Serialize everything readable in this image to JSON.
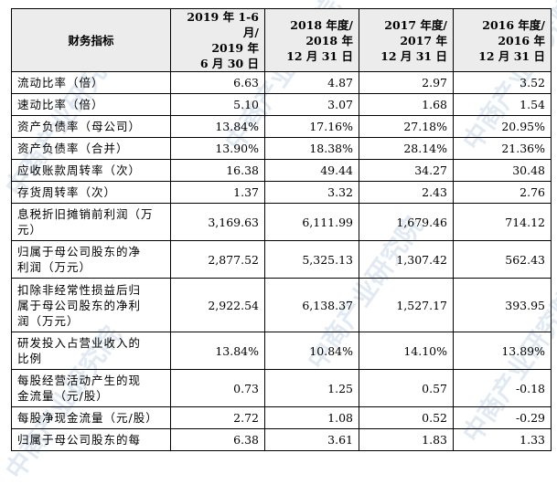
{
  "header": {
    "label": "财务指标",
    "cols": [
      [
        "2019 年 1-6 月/",
        "2019 年",
        "6 月 30 日"
      ],
      [
        "2018 年度/",
        "2018 年",
        "12 月 31 日"
      ],
      [
        "2017 年度/",
        "2017 年",
        "12 月 31 日"
      ],
      [
        "2016 年度/",
        "2016 年",
        "12 月 31 日"
      ]
    ]
  },
  "rows": [
    {
      "label": [
        "流动比率（倍）"
      ],
      "values": [
        "6.63",
        "4.87",
        "2.97",
        "3.52"
      ]
    },
    {
      "label": [
        "速动比率（倍）"
      ],
      "values": [
        "5.10",
        "3.07",
        "1.68",
        "1.54"
      ]
    },
    {
      "label": [
        "资产负债率（母公司）"
      ],
      "values": [
        "13.84%",
        "17.16%",
        "27.18%",
        "20.95%"
      ]
    },
    {
      "label": [
        "资产负债率（合并）"
      ],
      "values": [
        "13.90%",
        "18.38%",
        "28.14%",
        "21.36%"
      ]
    },
    {
      "label": [
        "应收账款周转率（次）"
      ],
      "values": [
        "16.38",
        "49.44",
        "34.27",
        "30.48"
      ]
    },
    {
      "label": [
        "存货周转率（次）"
      ],
      "values": [
        "1.37",
        "3.32",
        "2.43",
        "2.76"
      ]
    },
    {
      "label": [
        "息税折旧摊销前利润（万",
        "元）"
      ],
      "values": [
        "3,169.63",
        "6,111.99",
        "1,679.46",
        "714.12"
      ]
    },
    {
      "label": [
        "归属于母公司股东的净",
        "利润（万元）"
      ],
      "values": [
        "2,877.52",
        "5,325.13",
        "1,307.42",
        "562.43"
      ]
    },
    {
      "label": [
        "扣除非经常性损益后归",
        "属于母公司股东的净利",
        "润（万元）"
      ],
      "values": [
        "2,922.54",
        "6,138.37",
        "1,527.17",
        "393.95"
      ]
    },
    {
      "label": [
        "研发投入占营业收入的",
        "比例"
      ],
      "values": [
        "13.84%",
        "10.84%",
        "14.10%",
        "13.89%"
      ]
    },
    {
      "label": [
        "每股经营活动产生的现",
        "金流量（元/股）"
      ],
      "values": [
        "0.73",
        "1.25",
        "0.57",
        "-0.18"
      ]
    },
    {
      "label": [
        "每股净现金流量（元/股）"
      ],
      "values": [
        "2.72",
        "1.08",
        "0.52",
        "-0.29"
      ]
    },
    {
      "label": [
        "归属于母公司股东的每"
      ],
      "values": [
        "6.38",
        "3.61",
        "1.83",
        "1.33"
      ]
    }
  ],
  "watermark": "中商产业研究院"
}
